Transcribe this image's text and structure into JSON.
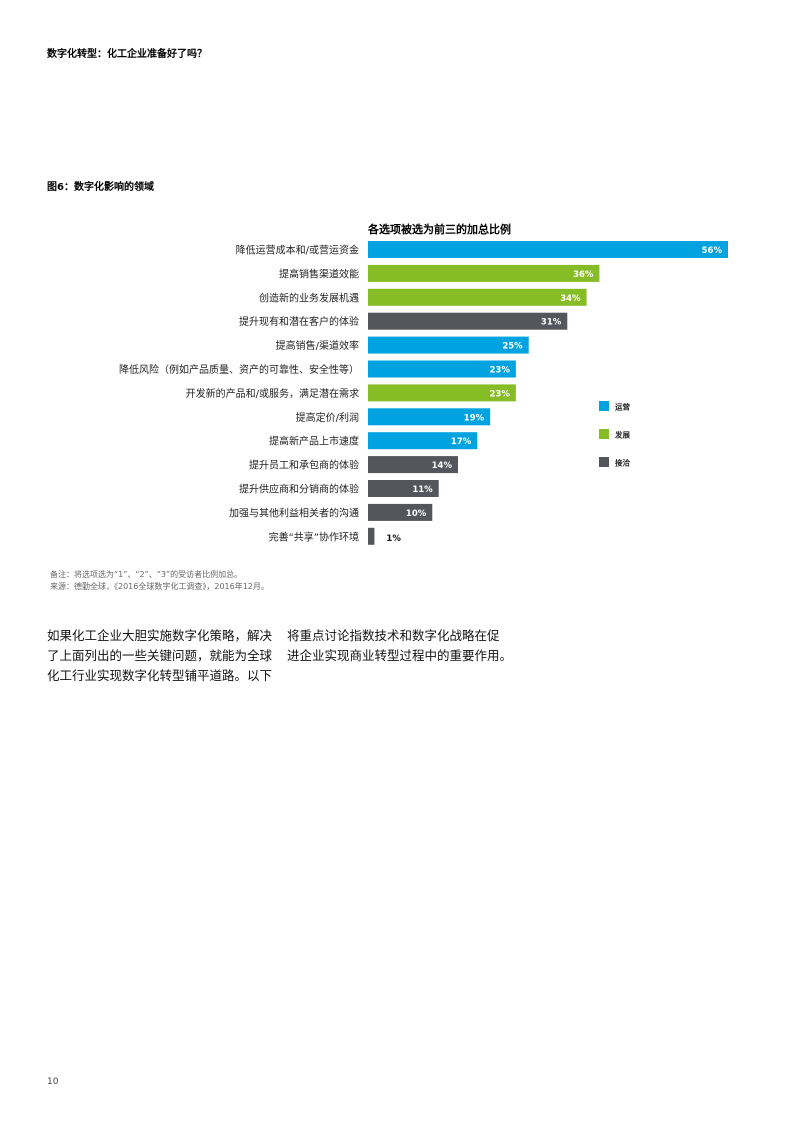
{
  "header": {
    "title": "数字化转型：化工企业准备好了吗？"
  },
  "figure": {
    "title": "图6：数字化影响的领域"
  },
  "chart_data": {
    "type": "bar",
    "orientation": "horizontal",
    "title": "各选项被选为前三的加总比例",
    "xlim": [
      0,
      56
    ],
    "categories": [
      "降低运营成本和/或营运资金",
      "提高销售渠道效能",
      "创造新的业务发展机遇",
      "提升现有和潜在客户的体验",
      "提高销售/渠道效率",
      "降低风险（例如产品质量、资产的可靠性、安全性等）",
      "开发新的产品和/或服务，满足潜在需求",
      "提高定价/利润",
      "提高新产品上市速度",
      "提升员工和承包商的体验",
      "提升供应商和分销商的体验",
      "加强与其他利益相关者的沟通",
      "完善“共享”协作环境"
    ],
    "values": [
      56,
      36,
      34,
      31,
      25,
      23,
      23,
      19,
      17,
      14,
      11,
      10,
      1
    ],
    "value_labels": [
      "56%",
      "36%",
      "34%",
      "31%",
      "25%",
      "23%",
      "23%",
      "19%",
      "17%",
      "14%",
      "11%",
      "10%",
      "1%"
    ],
    "groups": [
      "运营",
      "发展",
      "发展",
      "接洽",
      "运营",
      "运营",
      "发展",
      "运营",
      "运营",
      "接洽",
      "接洽",
      "接洽",
      "接洽"
    ],
    "legend": [
      {
        "name": "运营",
        "color": "#00a3e0"
      },
      {
        "name": "发展",
        "color": "#86bc25"
      },
      {
        "name": "接洽",
        "color": "#53565a"
      }
    ],
    "legend_position": "right"
  },
  "notes": {
    "note": "备注：将选项选为“1”、“2”、“3”的受访者比例加总。",
    "source": "来源：德勤全球，《2016全球数字化工调查》，2016年12月。"
  },
  "body": {
    "left_lines": [
      "如果化工企业大胆实施数字化策略，解决",
      "了上面列出的一些关键问题，就能为全球",
      "化工行业实现数字化转型铺平道路。以下"
    ],
    "right_lines": [
      "将重点讨论指数技术和数字化战略在促",
      "进企业实现商业转型过程中的重要作用。"
    ]
  },
  "footer": {
    "page_number": "10"
  }
}
